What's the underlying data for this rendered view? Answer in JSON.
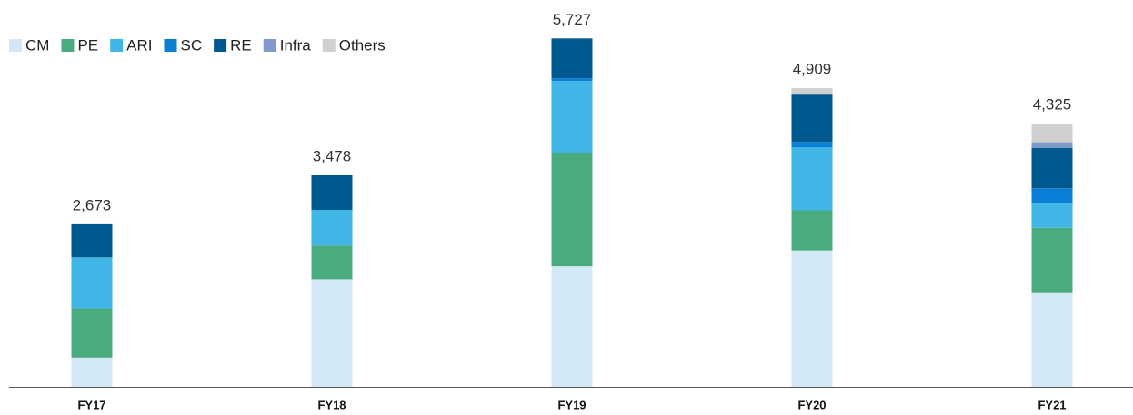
{
  "chart_data": {
    "type": "stacked_bar",
    "categories": [
      "FY17",
      "FY18",
      "FY19",
      "FY20",
      "FY21"
    ],
    "series": [
      {
        "name": "CM",
        "color": "#d3e8f7",
        "values": [
          480,
          1770,
          1984,
          2244,
          1542
        ]
      },
      {
        "name": "PE",
        "color": "#4aab7e",
        "values": [
          810,
          555,
          1864,
          659,
          1073
        ]
      },
      {
        "name": "ARI",
        "color": "#41b6e6",
        "values": [
          840,
          585,
          1178,
          1033,
          408
        ]
      },
      {
        "name": "SC",
        "color": "#0a7fd6",
        "values": [
          0,
          0,
          45,
          90,
          242
        ]
      },
      {
        "name": "RE",
        "color": "#005a8f",
        "values": [
          543,
          568,
          656,
          778,
          665
        ]
      },
      {
        "name": "Infra",
        "color": "#7f9ac9",
        "values": [
          0,
          0,
          0,
          0,
          91
        ]
      },
      {
        "name": "Others",
        "color": "#d0d0d0",
        "values": [
          0,
          0,
          0,
          105,
          304
        ]
      }
    ],
    "totals": [
      2673,
      3478,
      5727,
      4909,
      4325
    ],
    "total_labels": [
      "2,673",
      "3,478",
      "5,727",
      "4,909",
      "4,325"
    ],
    "ylim": [
      0,
      6000
    ]
  }
}
